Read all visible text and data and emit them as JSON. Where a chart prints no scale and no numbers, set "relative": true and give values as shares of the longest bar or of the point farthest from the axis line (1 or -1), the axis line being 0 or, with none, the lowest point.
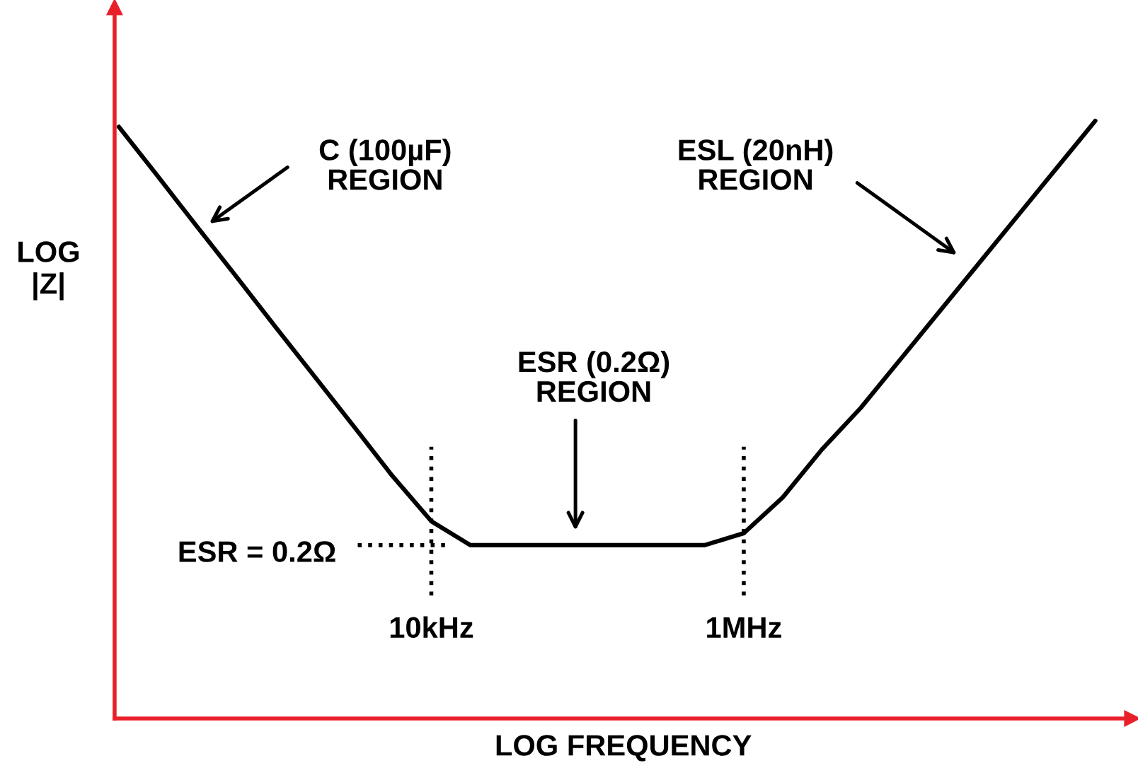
{
  "chart_data": {
    "type": "line",
    "relative": true,
    "xlabel": "LOG FREQUENCY",
    "ylabel": "LOG\n|Z|",
    "categories": [
      null,
      null,
      null,
      null,
      null,
      null,
      null,
      null,
      "10kHz",
      null,
      null,
      null,
      null,
      null,
      null,
      null,
      "1MHz",
      null,
      null,
      null,
      null,
      null,
      null,
      null,
      null,
      null
    ],
    "series": [
      {
        "color": "#000000",
        "values": [
          0.99,
          0.907,
          0.823,
          0.74,
          0.656,
          0.573,
          0.49,
          0.406,
          0.33,
          0.29,
          0.29,
          0.29,
          0.29,
          0.29,
          0.29,
          0.29,
          0.31,
          0.37,
          0.45,
          0.52,
          0.6,
          0.68,
          0.76,
          0.84,
          0.92,
          1.0
        ]
      }
    ],
    "ref_lines": [
      {
        "axis": "y",
        "value": 0.29,
        "line_style": "dotted",
        "color": "#000000"
      },
      {
        "axis": "x",
        "value": "10kHz",
        "line_style": "dotted",
        "color": "#000000"
      },
      {
        "axis": "x",
        "value": "1MHz",
        "line_style": "dotted",
        "color": "#000000"
      }
    ],
    "annotations": [
      "C (100µF)\nREGION",
      "ESL (20nH)\nREGION",
      "ESR (0.2Ω)\nREGION",
      "ESR = 0.2Ω"
    ],
    "grid": false,
    "marker": "none",
    "line_style": "solid"
  }
}
